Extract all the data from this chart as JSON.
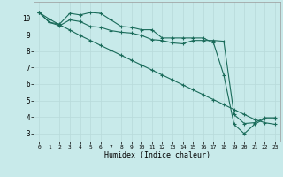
{
  "title": "",
  "xlabel": "Humidex (Indice chaleur)",
  "ylabel": "",
  "bg_color": "#c8eaea",
  "grid_color": "#b8dada",
  "line_color": "#1a6b5a",
  "xlim": [
    -0.5,
    23.5
  ],
  "ylim": [
    2.5,
    11.0
  ],
  "xticks": [
    0,
    1,
    2,
    3,
    4,
    5,
    6,
    7,
    8,
    9,
    10,
    11,
    12,
    13,
    14,
    15,
    16,
    17,
    18,
    19,
    20,
    21,
    22,
    23
  ],
  "yticks": [
    3,
    4,
    5,
    6,
    7,
    8,
    9,
    10
  ],
  "line1_x": [
    0,
    1,
    2,
    3,
    4,
    5,
    6,
    7,
    8,
    9,
    10,
    11,
    12,
    13,
    14,
    15,
    16,
    17,
    18,
    19,
    20,
    21,
    22,
    23
  ],
  "line1_y": [
    10.35,
    9.75,
    9.65,
    10.3,
    10.2,
    10.35,
    10.3,
    9.9,
    9.5,
    9.45,
    9.3,
    9.3,
    8.8,
    8.8,
    8.8,
    8.8,
    8.8,
    8.5,
    6.55,
    3.55,
    2.98,
    3.55,
    3.9,
    3.9
  ],
  "line2_x": [
    0,
    1,
    2,
    3,
    4,
    5,
    6,
    7,
    8,
    9,
    10,
    11,
    12,
    13,
    14,
    15,
    16,
    17,
    18,
    19,
    20,
    21,
    22,
    23
  ],
  "line2_y": [
    10.35,
    9.75,
    9.55,
    9.9,
    9.8,
    9.5,
    9.45,
    9.25,
    9.15,
    9.1,
    8.95,
    8.7,
    8.65,
    8.5,
    8.45,
    8.65,
    8.65,
    8.65,
    8.6,
    4.15,
    3.6,
    3.65,
    3.95,
    3.95
  ],
  "line3_x": [
    0,
    1,
    2,
    3,
    4,
    5,
    6,
    7,
    8,
    9,
    10,
    11,
    12,
    13,
    14,
    15,
    16,
    17,
    18,
    19,
    20,
    21,
    22,
    23
  ],
  "line3_y": [
    10.35,
    9.95,
    9.6,
    9.28,
    8.95,
    8.65,
    8.35,
    8.05,
    7.75,
    7.45,
    7.15,
    6.85,
    6.55,
    6.25,
    5.95,
    5.65,
    5.35,
    5.05,
    4.75,
    4.45,
    4.15,
    3.85,
    3.65,
    3.55
  ]
}
